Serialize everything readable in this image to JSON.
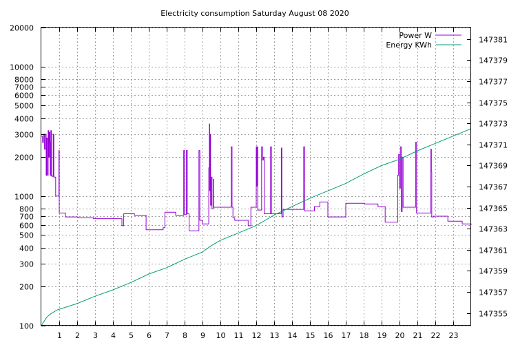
{
  "chart_data": {
    "type": "line",
    "title": "Electricity consumption Saturday August 08 2020",
    "xlabel": "",
    "ylabel": "",
    "y2label": "",
    "xlim": [
      0,
      24
    ],
    "ylim": [
      100,
      20000
    ],
    "y_scale": "log",
    "y2lim": [
      147353.8,
      147382.1
    ],
    "y2_scale": "linear",
    "grid": true,
    "legend_position": "top-right",
    "x_ticks": [
      "1",
      "2",
      "3",
      "4",
      "5",
      "6",
      "7",
      "8",
      "9",
      "10",
      "11",
      "12",
      "13",
      "14",
      "15",
      "16",
      "17",
      "18",
      "19",
      "20",
      "21",
      "22",
      "23"
    ],
    "y_ticks": [
      {
        "value": 100,
        "label": "100"
      },
      {
        "value": 200,
        "label": "200"
      },
      {
        "value": 300,
        "label": "300"
      },
      {
        "value": 400,
        "label": "400"
      },
      {
        "value": 500,
        "label": "500"
      },
      {
        "value": 600,
        "label": "600"
      },
      {
        "value": 700,
        "label": "700"
      },
      {
        "value": 800,
        "label": "800"
      },
      {
        "value": 1000,
        "label": "1000"
      },
      {
        "value": 2000,
        "label": "2000"
      },
      {
        "value": 3000,
        "label": "3000"
      },
      {
        "value": 4000,
        "label": "4000"
      },
      {
        "value": 5000,
        "label": "5000"
      },
      {
        "value": 6000,
        "label": "6000"
      },
      {
        "value": 7000,
        "label": "7000"
      },
      {
        "value": 8000,
        "label": "8000"
      },
      {
        "value": 10000,
        "label": "10000"
      },
      {
        "value": 20000,
        "label": "20000"
      }
    ],
    "y2_ticks": [
      "147355",
      "147357",
      "147359",
      "147361",
      "147363",
      "147365",
      "147367",
      "147369",
      "147371",
      "147373",
      "147375",
      "147377",
      "147379",
      "147381"
    ],
    "series": [
      {
        "name": "Power W",
        "color": "#9400d3",
        "axis": "left",
        "step": true,
        "points": [
          [
            0.0,
            2900
          ],
          [
            0.07,
            2600
          ],
          [
            0.12,
            3000
          ],
          [
            0.17,
            2300
          ],
          [
            0.22,
            3000
          ],
          [
            0.27,
            1450
          ],
          [
            0.3,
            2800
          ],
          [
            0.35,
            1450
          ],
          [
            0.38,
            3200
          ],
          [
            0.42,
            2000
          ],
          [
            0.45,
            3100
          ],
          [
            0.48,
            2600
          ],
          [
            0.5,
            1450
          ],
          [
            0.53,
            3200
          ],
          [
            0.56,
            1430
          ],
          [
            0.62,
            1420
          ],
          [
            0.66,
            3000
          ],
          [
            0.7,
            1400
          ],
          [
            0.8,
            1000
          ],
          [
            0.98,
            2250
          ],
          [
            1.0,
            740
          ],
          [
            1.35,
            690
          ],
          [
            2.05,
            680
          ],
          [
            2.9,
            670
          ],
          [
            4.5,
            590
          ],
          [
            4.6,
            730
          ],
          [
            5.2,
            710
          ],
          [
            5.85,
            550
          ],
          [
            6.8,
            570
          ],
          [
            6.9,
            750
          ],
          [
            7.5,
            710
          ],
          [
            7.95,
            2250
          ],
          [
            8.0,
            720
          ],
          [
            8.1,
            2250
          ],
          [
            8.15,
            730
          ],
          [
            8.25,
            540
          ],
          [
            8.8,
            2250
          ],
          [
            8.85,
            650
          ],
          [
            9.0,
            610
          ],
          [
            9.35,
            1650
          ],
          [
            9.38,
            3600
          ],
          [
            9.4,
            1100
          ],
          [
            9.42,
            3000
          ],
          [
            9.45,
            850
          ],
          [
            9.5,
            1400
          ],
          [
            9.53,
            800
          ],
          [
            9.6,
            1350
          ],
          [
            9.62,
            820
          ],
          [
            10.6,
            2400
          ],
          [
            10.65,
            820
          ],
          [
            10.7,
            680
          ],
          [
            10.8,
            650
          ],
          [
            11.55,
            590
          ],
          [
            11.7,
            820
          ],
          [
            12.0,
            2400
          ],
          [
            12.03,
            1200
          ],
          [
            12.05,
            2400
          ],
          [
            12.08,
            780
          ],
          [
            12.3,
            2400
          ],
          [
            12.35,
            1900
          ],
          [
            12.4,
            2000
          ],
          [
            12.45,
            730
          ],
          [
            12.8,
            2400
          ],
          [
            12.85,
            730
          ],
          [
            13.4,
            2350
          ],
          [
            13.43,
            690
          ],
          [
            13.5,
            790
          ],
          [
            14.65,
            2400
          ],
          [
            14.7,
            770
          ],
          [
            15.25,
            830
          ],
          [
            15.55,
            900
          ],
          [
            16.0,
            690
          ],
          [
            17.0,
            880
          ],
          [
            18.05,
            870
          ],
          [
            18.8,
            830
          ],
          [
            19.2,
            820
          ],
          [
            19.2,
            630
          ],
          [
            19.9,
            1450
          ],
          [
            19.95,
            2100
          ],
          [
            20.0,
            1150
          ],
          [
            20.05,
            2400
          ],
          [
            20.1,
            760
          ],
          [
            20.15,
            2000
          ],
          [
            20.2,
            820
          ],
          [
            20.85,
            820
          ],
          [
            20.9,
            2600
          ],
          [
            20.95,
            740
          ],
          [
            21.75,
            2300
          ],
          [
            21.78,
            1550
          ],
          [
            21.8,
            690
          ],
          [
            21.9,
            700
          ],
          [
            22.7,
            640
          ],
          [
            23.5,
            610
          ],
          [
            24.0,
            600
          ]
        ]
      },
      {
        "name": "Energy KWh",
        "color": "#009e73",
        "axis": "right",
        "step": false,
        "points": [
          [
            0.0,
            147353.8
          ],
          [
            0.3,
            147354.6
          ],
          [
            0.5,
            147354.9
          ],
          [
            0.9,
            147355.3
          ],
          [
            2.0,
            147355.9
          ],
          [
            3.0,
            147356.6
          ],
          [
            4.0,
            147357.2
          ],
          [
            5.0,
            147357.9
          ],
          [
            6.0,
            147358.7
          ],
          [
            7.0,
            147359.3
          ],
          [
            8.0,
            147360.1
          ],
          [
            9.0,
            147360.8
          ],
          [
            9.5,
            147361.4
          ],
          [
            10.0,
            147361.9
          ],
          [
            11.0,
            147362.6
          ],
          [
            12.0,
            147363.3
          ],
          [
            13.0,
            147364.3
          ],
          [
            13.5,
            147364.7
          ],
          [
            14.0,
            147365.1
          ],
          [
            15.0,
            147365.9
          ],
          [
            16.0,
            147366.6
          ],
          [
            17.0,
            147367.3
          ],
          [
            18.0,
            147368.2
          ],
          [
            19.0,
            147369.0
          ],
          [
            20.0,
            147369.6
          ],
          [
            21.0,
            147370.4
          ],
          [
            22.0,
            147371.1
          ],
          [
            23.0,
            147371.8
          ],
          [
            24.0,
            147372.5
          ]
        ]
      }
    ]
  }
}
